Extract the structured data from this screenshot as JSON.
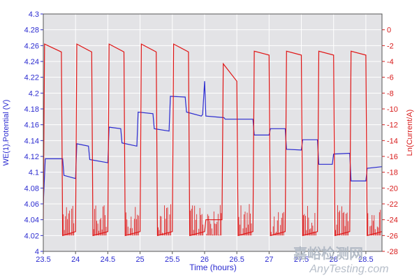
{
  "chart_data": {
    "type": "line",
    "x_label": "Time (hours)",
    "y_left_label": "WE(1).Potential (V)",
    "y_right_label": "Ln(Current/A)",
    "x_range": [
      23.5,
      28.75
    ],
    "y_left_range": [
      4.0,
      4.3
    ],
    "y_right_range": [
      -28,
      2
    ],
    "x_ticks": [
      "23.5",
      "24",
      "24.5",
      "25",
      "25.5",
      "26",
      "26.5",
      "27",
      "27.5",
      "28",
      "28.5"
    ],
    "y_left_ticks": [
      "4",
      "4.02",
      "4.04",
      "4.06",
      "4.08",
      "4.1",
      "4.12",
      "4.14",
      "4.16",
      "4.18",
      "4.2",
      "4.22",
      "4.24",
      "4.26",
      "4.28",
      "4.3"
    ],
    "y_right_ticks": [
      "0",
      "-2",
      "-4",
      "-6",
      "-8",
      "-10",
      "-12",
      "-14",
      "-16",
      "-18",
      "-20",
      "-22",
      "-24",
      "-26",
      "-28"
    ],
    "grid": true,
    "series": [
      {
        "name": "WE(1).Potential (V)",
        "axis": "left",
        "color": "#2b2bd0",
        "x": [
          23.5,
          23.53,
          23.8,
          23.82,
          24.0,
          24.02,
          24.2,
          24.22,
          24.5,
          24.52,
          24.7,
          24.72,
          24.95,
          24.97,
          25.2,
          25.22,
          25.45,
          25.47,
          25.7,
          25.72,
          25.95,
          25.97,
          26.0,
          26.02,
          26.3,
          26.32,
          26.75,
          26.77,
          27.0,
          27.02,
          27.25,
          27.27,
          27.5,
          27.52,
          27.75,
          27.77,
          27.98,
          28.0,
          28.25,
          28.27,
          28.5,
          28.52,
          28.75
        ],
        "y": [
          4.06,
          4.117,
          4.117,
          4.096,
          4.092,
          4.136,
          4.133,
          4.116,
          4.112,
          4.157,
          4.155,
          4.137,
          4.133,
          4.176,
          4.174,
          4.155,
          4.152,
          4.196,
          4.195,
          4.176,
          4.171,
          4.173,
          4.215,
          4.171,
          4.169,
          4.167,
          4.167,
          4.147,
          4.147,
          4.155,
          4.155,
          4.129,
          4.128,
          4.141,
          4.141,
          4.11,
          4.11,
          4.123,
          4.124,
          4.089,
          4.089,
          4.105,
          4.107
        ]
      },
      {
        "name": "Ln(Current/A)",
        "axis": "right",
        "color": "#e01515",
        "x": [
          23.5,
          23.52,
          23.78,
          23.8,
          24.0,
          24.02,
          24.25,
          24.27,
          24.5,
          24.52,
          24.75,
          24.77,
          25.0,
          25.02,
          25.25,
          25.27,
          25.5,
          25.52,
          25.75,
          25.77,
          26.0,
          26.02,
          26.27,
          26.29,
          26.5,
          26.52,
          26.75,
          26.77,
          27.0,
          27.02,
          27.25,
          27.27,
          27.5,
          27.52,
          27.75,
          27.77,
          28.0,
          28.02,
          28.25,
          28.27,
          28.5,
          28.52,
          28.75
        ],
        "y": [
          -24,
          -1.8,
          -2.8,
          -26,
          -25.5,
          -1.8,
          -2.8,
          -26,
          -25.5,
          -1.8,
          -2.8,
          -26,
          -25.5,
          -1.8,
          -2.8,
          -26,
          -25.5,
          -1.8,
          -2.8,
          -26,
          -25.5,
          -24,
          -24,
          -4.3,
          -6.5,
          -26,
          -25.5,
          -2.7,
          -3.2,
          -26,
          -25.5,
          -2.7,
          -3.2,
          -26,
          -25.5,
          -2.7,
          -3.2,
          -26,
          -25.5,
          -2.7,
          -3.2,
          -26,
          -25.5
        ]
      }
    ]
  },
  "watermark": {
    "line1": "嘉峪检测网",
    "line2": "AnyTesting.com"
  }
}
